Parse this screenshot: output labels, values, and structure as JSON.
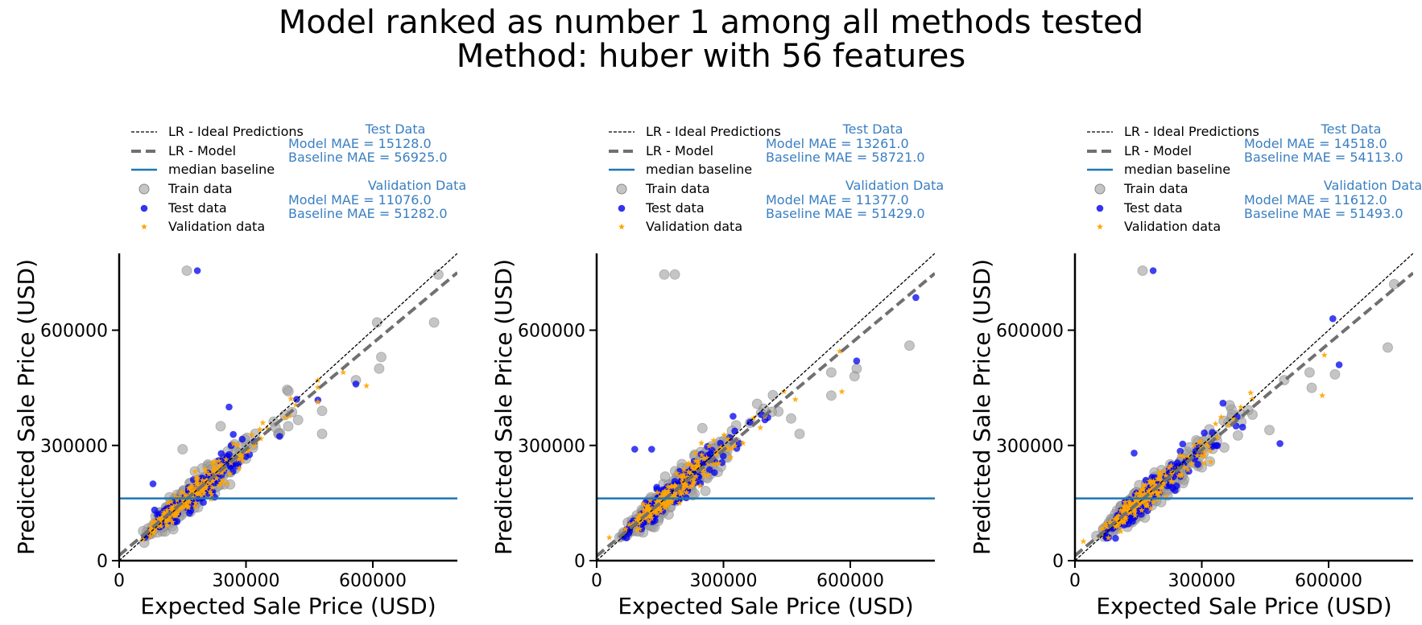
{
  "figure": {
    "title_line1": "Model ranked as number 1 among all methods tested",
    "title_line2": "Method: huber with 56 features"
  },
  "colors": {
    "ideal": "#000000",
    "model": "#707070",
    "baseline": "#1f77b4",
    "train": "#9e9e9e",
    "test": "#0000ee",
    "validation": "#ffa500",
    "annotation": "#3a7fc1"
  },
  "legend_labels": {
    "ideal": "LR - Ideal Predictions",
    "model": "LR - Model",
    "baseline": "median baseline",
    "train": "Train data",
    "test": "Test data",
    "validation": "Validation data"
  },
  "annotations": {
    "test_heading": "Test Data",
    "validation_heading": "Validation Data",
    "model_mae_label": "Model MAE    = ",
    "baseline_mae_label": "Baseline MAE = "
  },
  "chart_data": [
    {
      "type": "scatter",
      "xlabel": "Expected Sale Price (USD)",
      "ylabel": "Predicted Sale Price (USD)",
      "xlim": [
        0,
        800000
      ],
      "ylim": [
        0,
        800000
      ],
      "xticks": [
        "0",
        "300000",
        "600000"
      ],
      "yticks": [
        "0",
        "300000",
        "600000"
      ],
      "baseline_value": 162000,
      "model_slope": 0.92,
      "model_intercept": 14000,
      "test_metrics": {
        "model_mae": "15128.0",
        "baseline_mae": "56925.0"
      },
      "validation_metrics": {
        "model_mae": "11076.0",
        "baseline_mae": "51282.0"
      },
      "train_outliers": [
        [
          160000,
          755000
        ],
        [
          755000,
          745000
        ],
        [
          745000,
          620000
        ],
        [
          610000,
          620000
        ],
        [
          620000,
          530000
        ],
        [
          615000,
          500000
        ],
        [
          480000,
          390000
        ],
        [
          480000,
          330000
        ],
        [
          400000,
          350000
        ],
        [
          150000,
          290000
        ],
        [
          240000,
          350000
        ],
        [
          560000,
          470000
        ]
      ],
      "test_outliers": [
        [
          185000,
          755000
        ],
        [
          560000,
          460000
        ],
        [
          420000,
          420000
        ],
        [
          80000,
          200000
        ],
        [
          260000,
          400000
        ]
      ],
      "validation_outliers": [
        [
          585000,
          455000
        ],
        [
          530000,
          490000
        ],
        [
          280000,
          300000
        ]
      ],
      "seed": 11
    },
    {
      "type": "scatter",
      "xlabel": "Expected Sale Price (USD)",
      "ylabel": "Predicted Sale Price (USD)",
      "xlim": [
        0,
        800000
      ],
      "ylim": [
        0,
        800000
      ],
      "xticks": [
        "0",
        "300000",
        "600000"
      ],
      "yticks": [
        "0",
        "300000",
        "600000"
      ],
      "baseline_value": 162000,
      "model_slope": 0.92,
      "model_intercept": 12000,
      "test_metrics": {
        "model_mae": "13261.0",
        "baseline_mae": "58721.0"
      },
      "validation_metrics": {
        "model_mae": "11377.0",
        "baseline_mae": "51429.0"
      },
      "train_outliers": [
        [
          160000,
          745000
        ],
        [
          185000,
          745000
        ],
        [
          740000,
          560000
        ],
        [
          555000,
          430000
        ],
        [
          555000,
          490000
        ],
        [
          615000,
          500000
        ],
        [
          610000,
          480000
        ],
        [
          480000,
          330000
        ],
        [
          460000,
          370000
        ],
        [
          250000,
          345000
        ]
      ],
      "test_outliers": [
        [
          755000,
          685000
        ],
        [
          615000,
          520000
        ],
        [
          90000,
          290000
        ],
        [
          130000,
          290000
        ],
        [
          390000,
          380000
        ]
      ],
      "validation_outliers": [
        [
          580000,
          440000
        ],
        [
          575000,
          545000
        ],
        [
          30000,
          60000
        ]
      ],
      "seed": 23
    },
    {
      "type": "scatter",
      "xlabel": "Expected Sale Price (USD)",
      "ylabel": "Predicted Sale Price (USD)",
      "xlim": [
        0,
        800000
      ],
      "ylim": [
        0,
        800000
      ],
      "xticks": [
        "0",
        "300000",
        "600000"
      ],
      "yticks": [
        "0",
        "300000",
        "600000"
      ],
      "baseline_value": 162000,
      "model_slope": 0.92,
      "model_intercept": 13000,
      "test_metrics": {
        "model_mae": "14518.0",
        "baseline_mae": "54113.0"
      },
      "validation_metrics": {
        "model_mae": "11612.0",
        "baseline_mae": "51493.0"
      },
      "train_outliers": [
        [
          160000,
          755000
        ],
        [
          740000,
          555000
        ],
        [
          755000,
          720000
        ],
        [
          560000,
          450000
        ],
        [
          555000,
          490000
        ],
        [
          615000,
          485000
        ],
        [
          420000,
          380000
        ],
        [
          460000,
          340000
        ],
        [
          495000,
          470000
        ]
      ],
      "test_outliers": [
        [
          185000,
          755000
        ],
        [
          610000,
          630000
        ],
        [
          625000,
          510000
        ],
        [
          485000,
          305000
        ],
        [
          140000,
          280000
        ],
        [
          350000,
          410000
        ]
      ],
      "validation_outliers": [
        [
          585000,
          430000
        ],
        [
          590000,
          535000
        ],
        [
          20000,
          50000
        ]
      ],
      "seed": 37
    }
  ]
}
